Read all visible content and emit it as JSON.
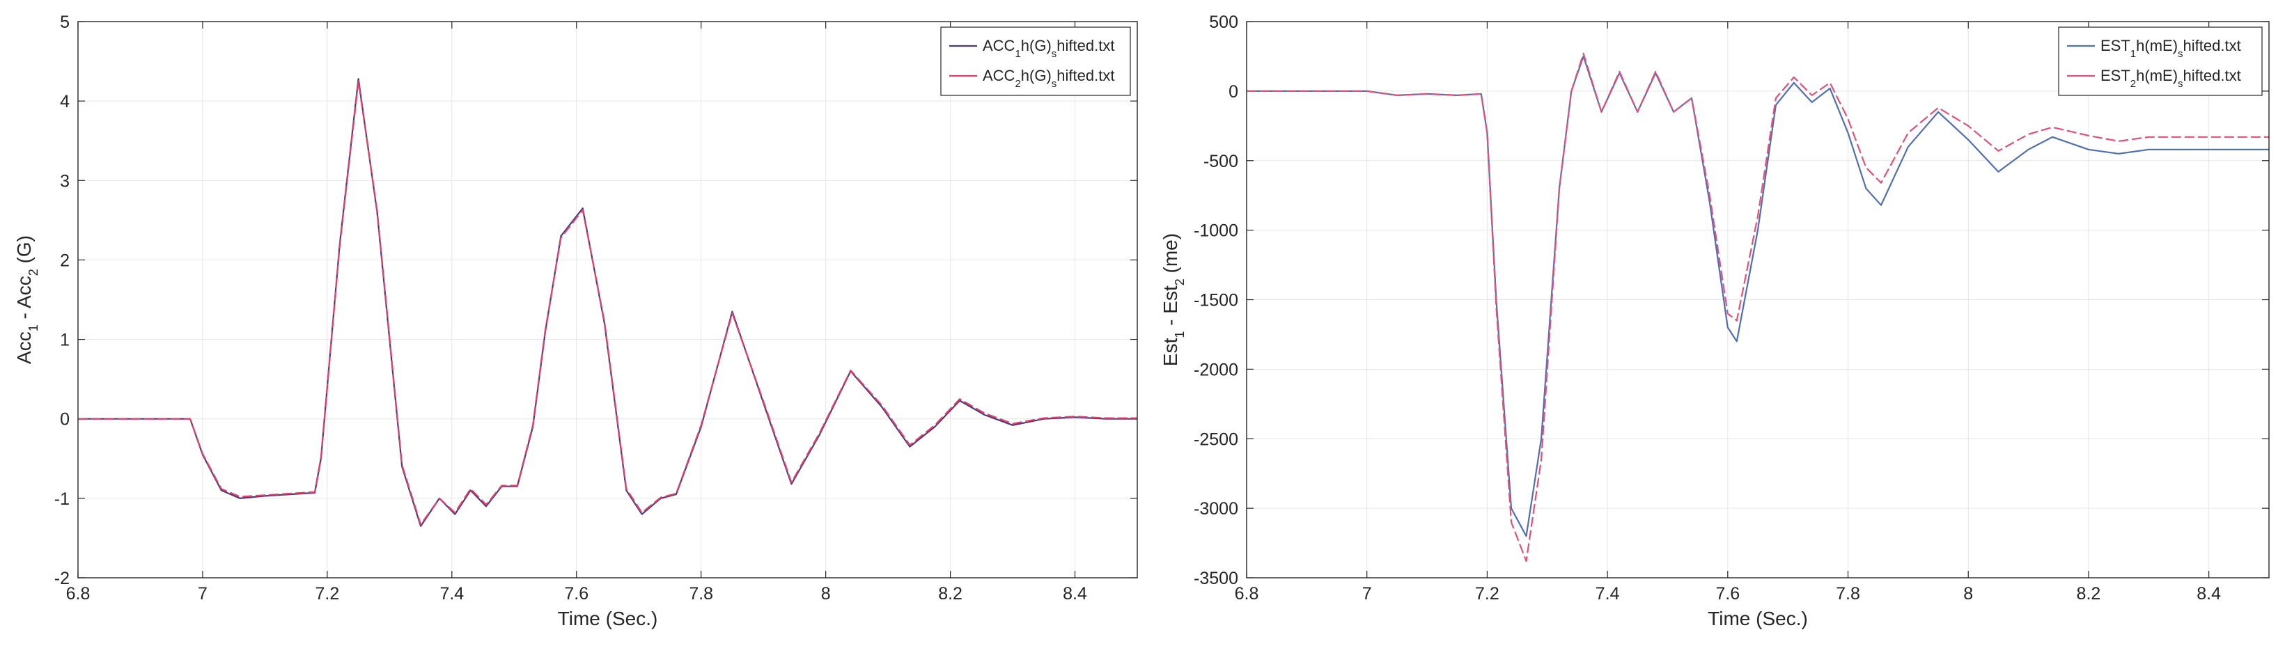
{
  "chart_data": [
    {
      "type": "line",
      "xlabel": "Time (Sec.)",
      "ylabel": {
        "parts": [
          "Acc",
          "1",
          " - Acc",
          "2",
          " (G)"
        ]
      },
      "xlim": [
        6.8,
        8.5
      ],
      "ylim": [
        -2,
        5
      ],
      "xticks": [
        "6.8",
        "7",
        "7.2",
        "7.4",
        "7.6",
        "7.8",
        "8",
        "8.2",
        "8.4"
      ],
      "yticks": [
        "-2",
        "-1",
        "0",
        "1",
        "2",
        "3",
        "4",
        "5"
      ],
      "grid": true,
      "legend_position": "top-right",
      "series": [
        {
          "name": "ACC1h(G)shifted.txt",
          "label_parts": [
            "ACC",
            "1",
            "h(G)",
            "s",
            "hifted.txt"
          ],
          "color": "#4a3a7a",
          "x": [
            6.8,
            6.98,
            7.0,
            7.03,
            7.06,
            7.1,
            7.14,
            7.18,
            7.19,
            7.22,
            7.25,
            7.28,
            7.32,
            7.35,
            7.38,
            7.405,
            7.43,
            7.455,
            7.48,
            7.505,
            7.53,
            7.55,
            7.575,
            7.61,
            7.645,
            7.68,
            7.705,
            7.735,
            7.76,
            7.8,
            7.85,
            7.9,
            7.945,
            7.99,
            8.04,
            8.09,
            8.135,
            8.175,
            8.215,
            8.255,
            8.3,
            8.35,
            8.4,
            8.45,
            8.5
          ],
          "y": [
            0.0,
            0.0,
            -0.45,
            -0.9,
            -1.0,
            -0.97,
            -0.95,
            -0.93,
            -0.5,
            2.2,
            4.28,
            2.6,
            -0.6,
            -1.35,
            -1.0,
            -1.2,
            -0.9,
            -1.1,
            -0.85,
            -0.85,
            -0.1,
            1.1,
            2.3,
            2.65,
            1.2,
            -0.9,
            -1.2,
            -1.0,
            -0.95,
            -0.1,
            1.35,
            0.2,
            -0.82,
            -0.2,
            0.6,
            0.15,
            -0.35,
            -0.1,
            0.23,
            0.05,
            -0.08,
            0.0,
            0.02,
            0.0,
            0.0
          ]
        },
        {
          "name": "ACC2h(G)shifted.txt",
          "label_parts": [
            "ACC",
            "2",
            "h(G)",
            "s",
            "hifted.txt"
          ],
          "color": "#e0406a",
          "x": [
            6.8,
            6.98,
            7.0,
            7.03,
            7.06,
            7.1,
            7.14,
            7.18,
            7.19,
            7.22,
            7.25,
            7.28,
            7.32,
            7.35,
            7.38,
            7.405,
            7.43,
            7.455,
            7.48,
            7.505,
            7.53,
            7.55,
            7.575,
            7.61,
            7.645,
            7.68,
            7.705,
            7.735,
            7.76,
            7.8,
            7.85,
            7.9,
            7.945,
            7.99,
            8.04,
            8.09,
            8.135,
            8.175,
            8.215,
            8.255,
            8.3,
            8.35,
            8.4,
            8.45,
            8.5
          ],
          "y": [
            0.0,
            0.0,
            -0.44,
            -0.88,
            -0.98,
            -0.96,
            -0.94,
            -0.92,
            -0.48,
            2.18,
            4.25,
            2.62,
            -0.58,
            -1.33,
            -1.0,
            -1.18,
            -0.88,
            -1.08,
            -0.84,
            -0.84,
            -0.08,
            1.12,
            2.28,
            2.63,
            1.22,
            -0.88,
            -1.18,
            -0.99,
            -0.94,
            -0.08,
            1.33,
            0.22,
            -0.8,
            -0.18,
            0.61,
            0.17,
            -0.33,
            -0.08,
            0.25,
            0.07,
            -0.06,
            0.01,
            0.03,
            0.01,
            0.01
          ]
        }
      ]
    },
    {
      "type": "line",
      "xlabel": "Time (Sec.)",
      "ylabel": {
        "parts": [
          "Est",
          "1",
          " - Est",
          "2",
          " (me)"
        ]
      },
      "xlim": [
        6.8,
        8.5
      ],
      "ylim": [
        -3500,
        500
      ],
      "xticks": [
        "6.8",
        "7",
        "7.2",
        "7.4",
        "7.6",
        "7.8",
        "8",
        "8.2",
        "8.4"
      ],
      "yticks": [
        "-3500",
        "-3000",
        "-2500",
        "-2000",
        "-1500",
        "-1000",
        "-500",
        "0",
        "500"
      ],
      "grid": true,
      "legend_position": "top-right",
      "series": [
        {
          "name": "EST1h(mE)shifted.txt",
          "label_parts": [
            "EST",
            "1",
            "h(mE)",
            "s",
            "hifted.txt"
          ],
          "color": "#4f6fb0",
          "x": [
            6.8,
            7.0,
            7.05,
            7.1,
            7.15,
            7.19,
            7.2,
            7.215,
            7.24,
            7.265,
            7.29,
            7.32,
            7.34,
            7.36,
            7.39,
            7.42,
            7.45,
            7.48,
            7.51,
            7.54,
            7.57,
            7.6,
            7.615,
            7.65,
            7.68,
            7.71,
            7.74,
            7.77,
            7.8,
            7.83,
            7.855,
            7.9,
            7.95,
            8.0,
            8.05,
            8.1,
            8.14,
            8.2,
            8.25,
            8.3,
            8.4,
            8.5
          ],
          "y": [
            0,
            0,
            -30,
            -20,
            -30,
            -20,
            -300,
            -1500,
            -3000,
            -3200,
            -2500,
            -700,
            0,
            250,
            -150,
            130,
            -150,
            130,
            -150,
            -50,
            -800,
            -1700,
            -1800,
            -1000,
            -100,
            60,
            -80,
            20,
            -300,
            -700,
            -820,
            -400,
            -150,
            -350,
            -580,
            -420,
            -330,
            -420,
            -450,
            -420,
            -420,
            -420
          ]
        },
        {
          "name": "EST2h(mE)shifted.txt",
          "label_parts": [
            "EST",
            "2",
            "h(mE)",
            "s",
            "hifted.txt"
          ],
          "color": "#e0507a",
          "x": [
            6.8,
            7.0,
            7.05,
            7.1,
            7.15,
            7.19,
            7.2,
            7.215,
            7.24,
            7.265,
            7.29,
            7.32,
            7.34,
            7.36,
            7.39,
            7.42,
            7.45,
            7.48,
            7.51,
            7.54,
            7.57,
            7.6,
            7.615,
            7.65,
            7.68,
            7.71,
            7.74,
            7.77,
            7.8,
            7.83,
            7.855,
            7.9,
            7.95,
            8.0,
            8.05,
            8.1,
            8.14,
            8.2,
            8.25,
            8.3,
            8.4,
            8.5
          ],
          "y": [
            0,
            0,
            -30,
            -20,
            -30,
            -20,
            -300,
            -1550,
            -3100,
            -3380,
            -2650,
            -700,
            0,
            270,
            -150,
            140,
            -150,
            140,
            -150,
            -50,
            -750,
            -1600,
            -1650,
            -900,
            -50,
            100,
            -30,
            60,
            -200,
            -550,
            -660,
            -300,
            -120,
            -250,
            -430,
            -310,
            -260,
            -320,
            -360,
            -330,
            -330,
            -330
          ]
        }
      ]
    }
  ]
}
